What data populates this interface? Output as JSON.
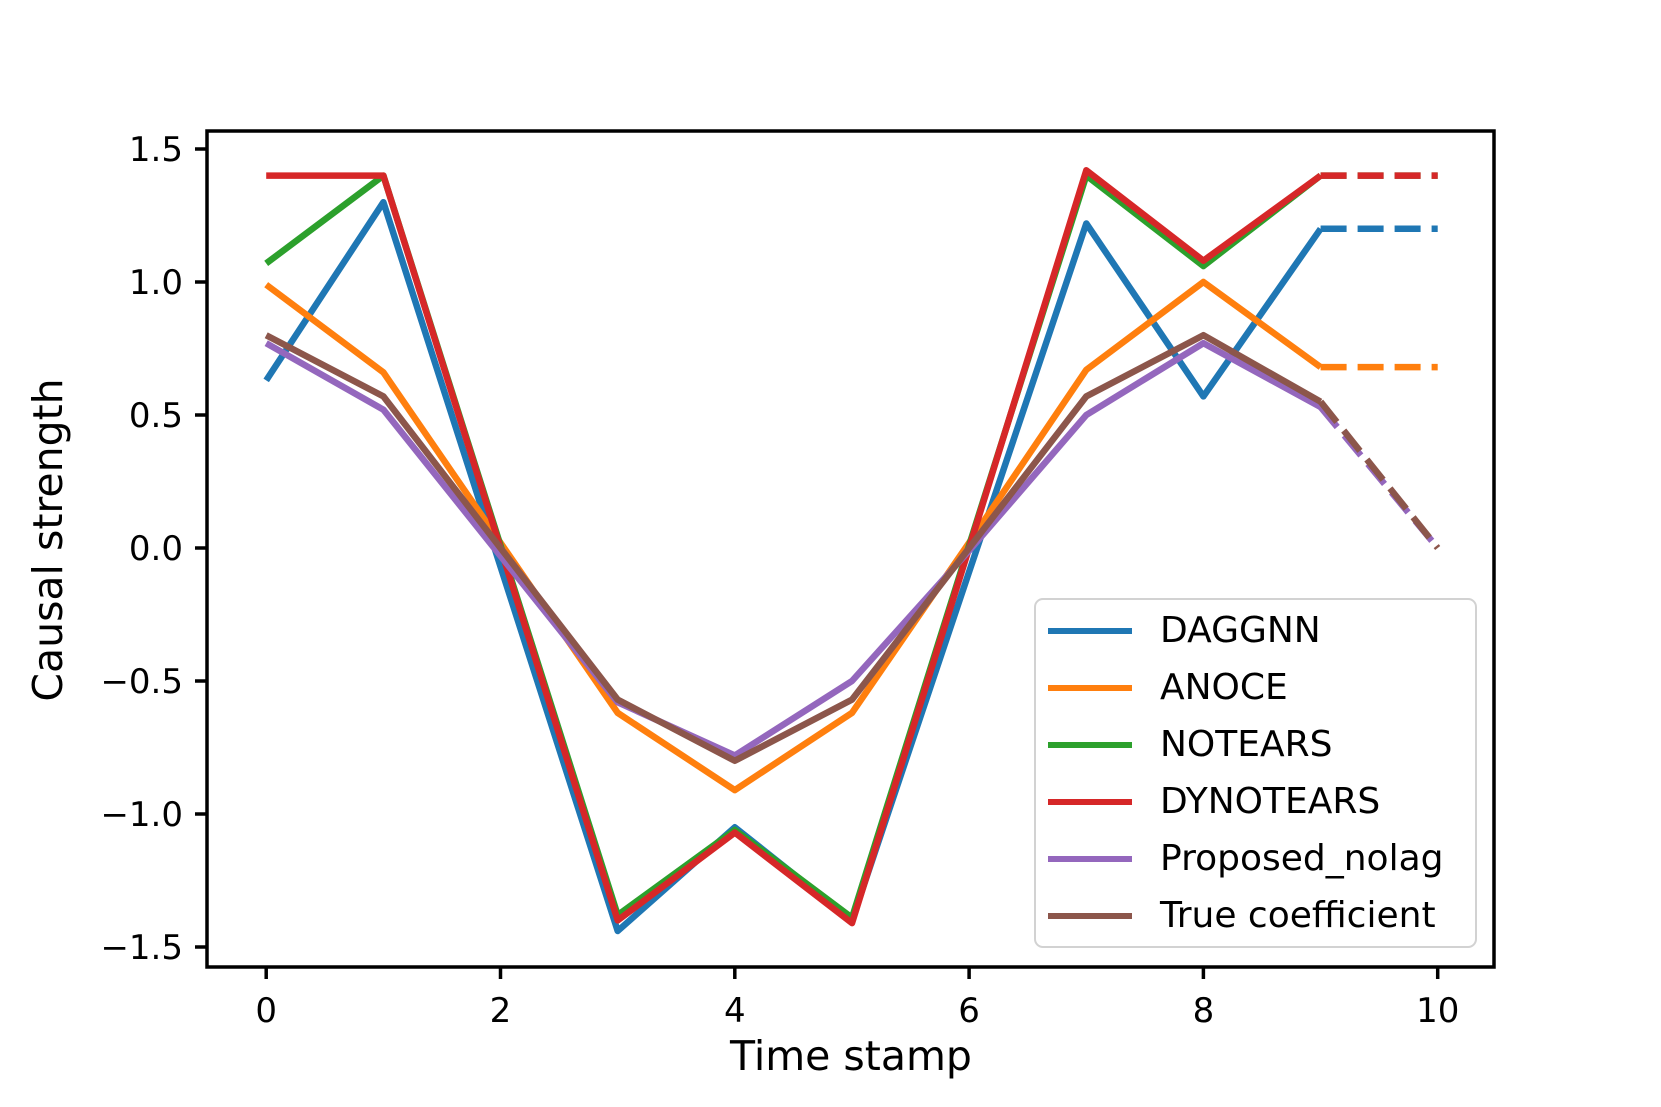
{
  "chart_data": {
    "type": "line",
    "title": "",
    "xlabel": "Time stamp",
    "ylabel": "Causal strength",
    "x": [
      0,
      1,
      2,
      3,
      4,
      5,
      6,
      7,
      8,
      9,
      10
    ],
    "xlim": [
      -0.5,
      10.5
    ],
    "ylim": [
      -1.57,
      1.57
    ],
    "grid": false,
    "legend_position": "lower right inside",
    "dashed_from_x": 9,
    "axis_color": "#000000",
    "xticks": [
      {
        "label": "0",
        "value": 0
      },
      {
        "label": "2",
        "value": 2
      },
      {
        "label": "4",
        "value": 4
      },
      {
        "label": "6",
        "value": 6
      },
      {
        "label": "8",
        "value": 8
      },
      {
        "label": "10",
        "value": 10
      }
    ],
    "yticks": [
      {
        "label": "1.5",
        "value": 1.5
      },
      {
        "label": "1.0",
        "value": 1.0
      },
      {
        "label": "0.5",
        "value": 0.5
      },
      {
        "label": "0.0",
        "value": 0.0
      },
      {
        "label": "−0.5",
        "value": -0.5
      },
      {
        "label": "−1.0",
        "value": -1.0
      },
      {
        "label": "−1.5",
        "value": -1.5
      }
    ],
    "series": [
      {
        "name": "DAGGNN",
        "color": "#1f77b4",
        "values": [
          0.63,
          1.3,
          -0.07,
          -1.44,
          -1.05,
          -1.4,
          -0.09,
          1.22,
          0.57,
          1.2,
          1.2
        ]
      },
      {
        "name": "ANOCE",
        "color": "#ff7f0e",
        "values": [
          0.99,
          0.66,
          0.02,
          -0.62,
          -0.91,
          -0.62,
          0.02,
          0.67,
          1.0,
          0.68,
          0.68
        ]
      },
      {
        "name": "NOTEARS",
        "color": "#2ca02c",
        "values": [
          1.07,
          1.4,
          0.01,
          -1.38,
          -1.06,
          -1.39,
          0.01,
          1.4,
          1.06,
          1.4,
          1.4
        ]
      },
      {
        "name": "DYNOTEARS",
        "color": "#d62728",
        "values": [
          1.4,
          1.4,
          0.0,
          -1.4,
          -1.07,
          -1.41,
          0.0,
          1.42,
          1.08,
          1.4,
          1.4
        ]
      },
      {
        "name": "Proposed_nolag",
        "color": "#9467bd",
        "values": [
          0.77,
          0.52,
          -0.03,
          -0.58,
          -0.78,
          -0.5,
          -0.01,
          0.5,
          0.77,
          0.53,
          0.0
        ]
      },
      {
        "name": "True coefficient",
        "color": "#8c564b",
        "values": [
          0.8,
          0.57,
          0.0,
          -0.57,
          -0.8,
          -0.57,
          0.0,
          0.57,
          0.8,
          0.55,
          0.0
        ]
      }
    ]
  }
}
